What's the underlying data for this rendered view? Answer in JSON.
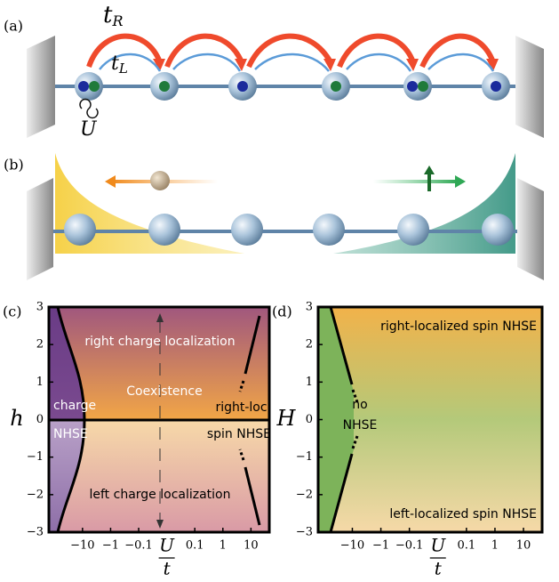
{
  "panels": {
    "a": {
      "label": "(a)",
      "t_right": {
        "symbol": "t",
        "subscript": "R"
      },
      "t_left": {
        "symbol": "t",
        "subscript": "L"
      },
      "interaction": "U"
    },
    "b": {
      "label": "(b)"
    }
  },
  "chart_data": [
    {
      "type": "phase-diagram",
      "panel_label": "(c)",
      "ylabel": "h",
      "xlabel": {
        "numerator": "U",
        "denominator": "t"
      },
      "xscale": "symlog",
      "linthresh": 0.1,
      "xlim": [
        -158,
        45
      ],
      "ylim": [
        -3,
        3
      ],
      "xticks": [
        {
          "value": -10,
          "label": "−10"
        },
        {
          "value": -1,
          "label": "−1"
        },
        {
          "value": -0.1,
          "label": "−0.1"
        },
        0.1,
        1,
        10
      ],
      "yticks": [
        {
          "value": -3,
          "label": "−3"
        },
        {
          "value": -2,
          "label": "−2"
        },
        {
          "value": -1,
          "label": "−1"
        },
        0,
        1,
        2,
        3
      ],
      "region_labels": [
        "right charge localization",
        "Coexistence",
        "right-loc.",
        "charge",
        "NHSE",
        "spin NHSE",
        "left charge localization"
      ]
    },
    {
      "type": "phase-diagram",
      "panel_label": "(d)",
      "ylabel": "H",
      "xlabel": {
        "numerator": "U",
        "denominator": "t"
      },
      "xscale": "symlog",
      "linthresh": 0.1,
      "xlim": [
        -158,
        45
      ],
      "ylim": [
        -3,
        3
      ],
      "xticks": [
        {
          "value": -10,
          "label": "−10"
        },
        {
          "value": -1,
          "label": "−1"
        },
        {
          "value": -0.1,
          "label": "−0.1"
        },
        0.1,
        1,
        10
      ],
      "yticks": [
        {
          "value": -3,
          "label": "−3"
        },
        {
          "value": -2,
          "label": "−2"
        },
        {
          "value": -1,
          "label": "−1"
        },
        0,
        1,
        2,
        3
      ],
      "region_labels": [
        "right-localized spin NHSE",
        "no",
        "NHSE",
        "left-localized spin NHSE"
      ]
    }
  ]
}
